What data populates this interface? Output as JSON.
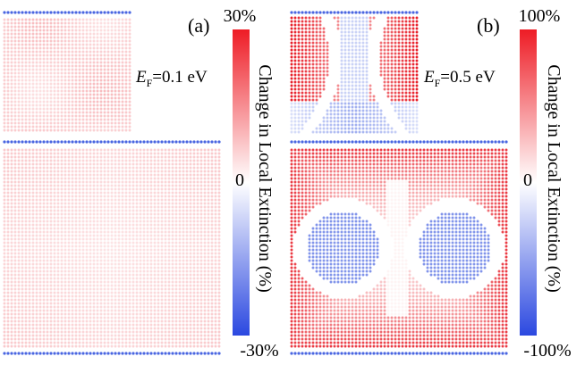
{
  "panels": [
    {
      "label": "(a)",
      "fermi_symbol": "E",
      "fermi_subscript": "F",
      "fermi_value": "=0.1 eV",
      "colorbar": {
        "max_label": "30%",
        "mid_label": "0",
        "min_label": "-30%",
        "title": "Change in Local Extinction (%)",
        "range": [
          -30,
          30
        ]
      },
      "pattern": "weak-uniform"
    },
    {
      "label": "(b)",
      "fermi_symbol": "E",
      "fermi_subscript": "F",
      "fermi_value": "=0.5 eV",
      "colorbar": {
        "max_label": "100%",
        "mid_label": "0",
        "min_label": "-100%",
        "title": "Change in Local Extinction (%)",
        "range": [
          -100,
          100
        ]
      },
      "pattern": "strong-lobes"
    }
  ],
  "colors": {
    "positive": "#e8202a",
    "negative": "#2a4bdc",
    "neutral": "#ffffff"
  }
}
